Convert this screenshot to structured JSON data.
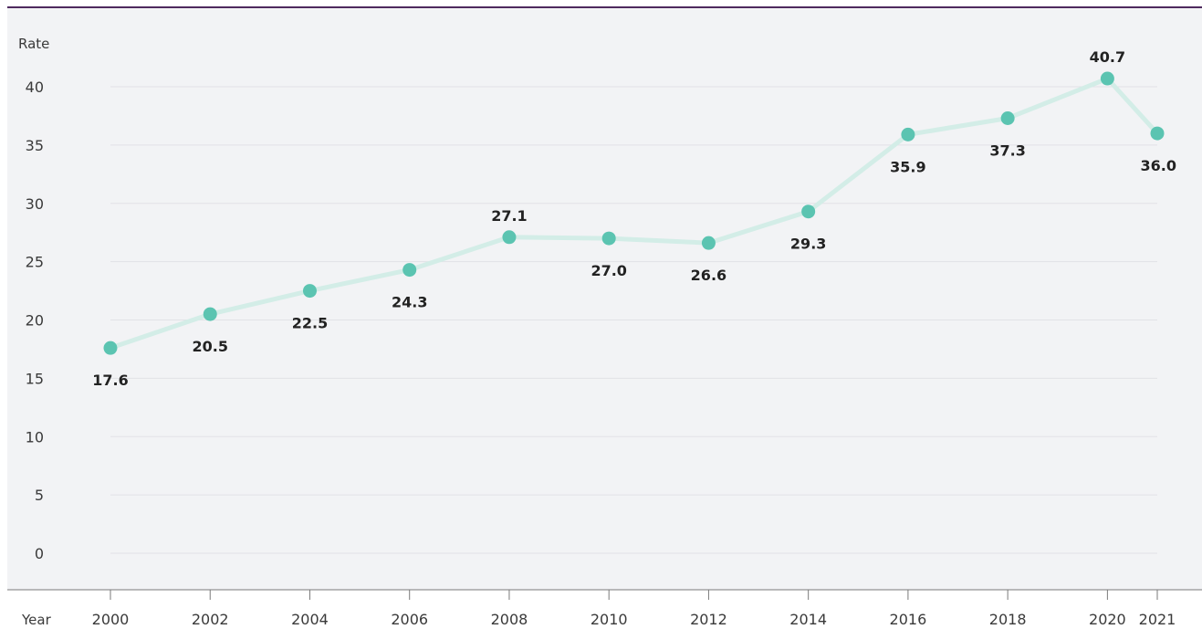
{
  "chart_data": {
    "type": "line",
    "ylabel": "Rate",
    "xlabel": "Year",
    "x": [
      2000,
      2002,
      2004,
      2006,
      2008,
      2010,
      2012,
      2014,
      2016,
      2018,
      2020,
      2021
    ],
    "x_tick_labels": [
      "2000",
      "2002",
      "2004",
      "2006",
      "2008",
      "2010",
      "2012",
      "2014",
      "2016",
      "2018",
      "2020",
      "2021"
    ],
    "series": [
      {
        "values": [
          17.6,
          20.5,
          22.5,
          24.3,
          27.1,
          27.0,
          26.6,
          29.3,
          35.9,
          37.3,
          40.7,
          36.0
        ]
      }
    ],
    "data_labels": [
      "17.6",
      "20.5",
      "22.5",
      "24.3",
      "27.1",
      "27.0",
      "26.6",
      "29.3",
      "35.9",
      "37.3",
      "40.7",
      "36.0"
    ],
    "y_ticks": [
      0,
      5,
      10,
      15,
      20,
      25,
      30,
      35,
      40
    ],
    "y_tick_labels": [
      "0",
      "5",
      "10",
      "15",
      "20",
      "25",
      "30",
      "35",
      "40"
    ],
    "ylim": [
      0,
      40
    ],
    "xlim": [
      2000,
      2021
    ],
    "grid": "horizontal",
    "legend": "none",
    "colors": {
      "point": "#5bc4b1",
      "line": "#d3ede7",
      "background": "#f2f3f5",
      "grid": "#e1e2e6",
      "top_border": "#4e2a5e",
      "axis": "#7a7a7a"
    }
  }
}
